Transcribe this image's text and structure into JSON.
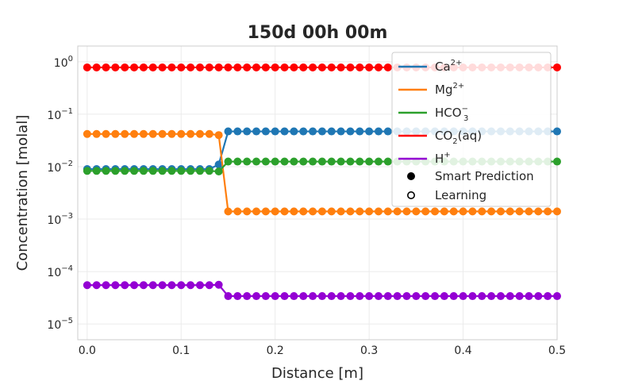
{
  "chart_data": {
    "type": "line",
    "title": "150d 00h 00m",
    "xlabel": "Distance [m]",
    "ylabel": "Concentration [molal]",
    "xlim": [
      -0.01,
      0.5
    ],
    "ylim_log10": [
      -5.3,
      0.3
    ],
    "y_scale": "log",
    "grid": true,
    "legend_position": "top-right",
    "x_ticks": [
      0.0,
      0.1,
      0.2,
      0.3,
      0.4,
      0.5
    ],
    "x_tick_labels": [
      "0.0",
      "0.1",
      "0.2",
      "0.3",
      "0.4",
      "0.5"
    ],
    "y_tick_exponents": [
      0,
      -1,
      -2,
      -3,
      -4,
      -5
    ],
    "y_tick_base": "10",
    "x": [
      0.0,
      0.01,
      0.02,
      0.03,
      0.04,
      0.05,
      0.06,
      0.07,
      0.08,
      0.09,
      0.1,
      0.11,
      0.12,
      0.13,
      0.14,
      0.15,
      0.16,
      0.17,
      0.18,
      0.19,
      0.2,
      0.21,
      0.22,
      0.23,
      0.24,
      0.25,
      0.26,
      0.27,
      0.28,
      0.29,
      0.3,
      0.31,
      0.32,
      0.33,
      0.34,
      0.35,
      0.36,
      0.37,
      0.38,
      0.39,
      0.4,
      0.41,
      0.42,
      0.43,
      0.44,
      0.45,
      0.46,
      0.47,
      0.48,
      0.49,
      0.5
    ],
    "series": [
      {
        "legend_base": "Ca",
        "legend_sup": "2+",
        "legend_sub": "",
        "legend_tail": "",
        "color": "#1f77b4",
        "values": [
          0.009,
          0.009,
          0.009,
          0.009,
          0.009,
          0.009,
          0.009,
          0.009,
          0.009,
          0.009,
          0.009,
          0.009,
          0.009,
          0.009,
          0.011,
          0.047,
          0.047,
          0.047,
          0.047,
          0.047,
          0.047,
          0.047,
          0.047,
          0.047,
          0.047,
          0.047,
          0.047,
          0.047,
          0.047,
          0.047,
          0.047,
          0.047,
          0.047,
          0.047,
          0.047,
          0.047,
          0.047,
          0.047,
          0.047,
          0.047,
          0.047,
          0.047,
          0.047,
          0.047,
          0.047,
          0.047,
          0.047,
          0.047,
          0.047,
          0.047,
          0.047
        ]
      },
      {
        "legend_base": "Mg",
        "legend_sup": "2+",
        "legend_sub": "",
        "legend_tail": "",
        "color": "#ff7f0e",
        "values": [
          0.042,
          0.042,
          0.042,
          0.042,
          0.042,
          0.042,
          0.042,
          0.042,
          0.042,
          0.042,
          0.042,
          0.042,
          0.042,
          0.042,
          0.04,
          0.0014,
          0.0014,
          0.0014,
          0.0014,
          0.0014,
          0.0014,
          0.0014,
          0.0014,
          0.0014,
          0.0014,
          0.0014,
          0.0014,
          0.0014,
          0.0014,
          0.0014,
          0.0014,
          0.0014,
          0.0014,
          0.0014,
          0.0014,
          0.0014,
          0.0014,
          0.0014,
          0.0014,
          0.0014,
          0.0014,
          0.0014,
          0.0014,
          0.0014,
          0.0014,
          0.0014,
          0.0014,
          0.0014,
          0.0014,
          0.0014,
          0.0014
        ]
      },
      {
        "legend_base": "HCO",
        "legend_sup": "−",
        "legend_sub": "3",
        "legend_tail": "",
        "color": "#2ca02c",
        "values": [
          0.0083,
          0.0083,
          0.0083,
          0.0083,
          0.0083,
          0.0083,
          0.0083,
          0.0083,
          0.0083,
          0.0083,
          0.0083,
          0.0083,
          0.0083,
          0.0083,
          0.0081,
          0.0125,
          0.0125,
          0.0125,
          0.0125,
          0.0125,
          0.0125,
          0.0125,
          0.0125,
          0.0125,
          0.0125,
          0.0125,
          0.0125,
          0.0125,
          0.0125,
          0.0125,
          0.0125,
          0.0125,
          0.0125,
          0.0125,
          0.0125,
          0.0125,
          0.0125,
          0.0125,
          0.0125,
          0.0125,
          0.0125,
          0.0125,
          0.0125,
          0.0125,
          0.0125,
          0.0125,
          0.0125,
          0.0125,
          0.0125,
          0.0125,
          0.0125
        ]
      },
      {
        "legend_base": "CO",
        "legend_sup": "",
        "legend_sub": "2",
        "legend_tail": "(aq)",
        "color": "#ff0000",
        "values": [
          0.78,
          0.78,
          0.78,
          0.78,
          0.78,
          0.78,
          0.78,
          0.78,
          0.78,
          0.78,
          0.78,
          0.78,
          0.78,
          0.78,
          0.78,
          0.78,
          0.78,
          0.78,
          0.78,
          0.78,
          0.78,
          0.78,
          0.78,
          0.78,
          0.78,
          0.78,
          0.78,
          0.78,
          0.78,
          0.78,
          0.78,
          0.78,
          0.78,
          0.78,
          0.78,
          0.78,
          0.78,
          0.78,
          0.78,
          0.78,
          0.78,
          0.78,
          0.78,
          0.78,
          0.78,
          0.78,
          0.78,
          0.78,
          0.78,
          0.78,
          0.78
        ]
      },
      {
        "legend_base": "H",
        "legend_sup": "+",
        "legend_sub": "",
        "legend_tail": "",
        "color": "#9400d3",
        "values": [
          5.5e-05,
          5.5e-05,
          5.5e-05,
          5.5e-05,
          5.5e-05,
          5.5e-05,
          5.5e-05,
          5.5e-05,
          5.5e-05,
          5.5e-05,
          5.5e-05,
          5.5e-05,
          5.5e-05,
          5.5e-05,
          5.6e-05,
          3.4e-05,
          3.4e-05,
          3.4e-05,
          3.4e-05,
          3.4e-05,
          3.4e-05,
          3.4e-05,
          3.4e-05,
          3.4e-05,
          3.4e-05,
          3.4e-05,
          3.4e-05,
          3.4e-05,
          3.4e-05,
          3.4e-05,
          3.4e-05,
          3.4e-05,
          3.4e-05,
          3.4e-05,
          3.4e-05,
          3.4e-05,
          3.4e-05,
          3.4e-05,
          3.4e-05,
          3.4e-05,
          3.4e-05,
          3.4e-05,
          3.4e-05,
          3.4e-05,
          3.4e-05,
          3.4e-05,
          3.4e-05,
          3.4e-05,
          3.4e-05,
          3.4e-05,
          3.4e-05
        ]
      }
    ],
    "marker_legend": [
      {
        "label": "Smart Prediction",
        "style": "filled"
      },
      {
        "label": "Learning",
        "style": "hollow"
      }
    ]
  }
}
